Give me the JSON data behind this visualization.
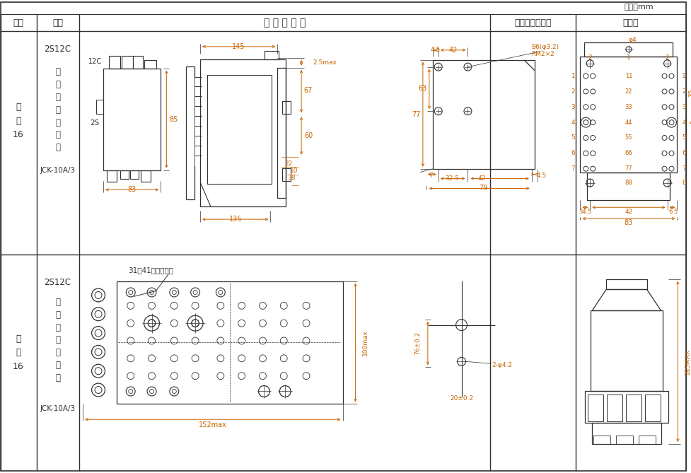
{
  "unit_label": "单位：mm",
  "header_figno": "图号",
  "header_struct": "结构",
  "header_shape": "外 形 尺 尸 图",
  "header_mount": "安装开孔尺尸图",
  "header_term": "端子图",
  "row1_col1": [
    "附",
    "图",
    "16"
  ],
  "row1_col2_top": "2S12C",
  "row1_col2_mid": [
    "凸",
    "出",
    "式",
    "板",
    "后",
    "接",
    "线"
  ],
  "row1_col2_bot": "JCK-10A/3",
  "row2_col1": [
    "附",
    "图",
    "16"
  ],
  "row2_col2_top": "2S12C",
  "row2_col2_mid": [
    "凸",
    "出",
    "式",
    "板",
    "前",
    "接",
    "线"
  ],
  "row2_col2_bot": "JCK-10A/3",
  "row2_col3_note": "31、41为电流端子",
  "lc": "#303030",
  "oc": "#c86400",
  "tc": "#303030",
  "bg": "#ffffff"
}
